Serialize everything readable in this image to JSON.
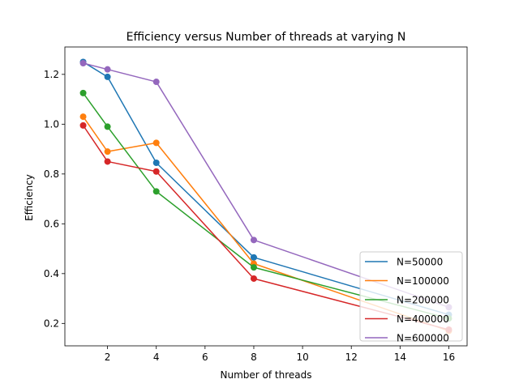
{
  "chart_data": {
    "type": "line",
    "title": "Efficiency versus Number of threads at varying N",
    "xlabel": "Number of threads",
    "ylabel": "Efficiency",
    "xlim": [
      0.25,
      16.75
    ],
    "ylim": [
      0.11,
      1.31
    ],
    "xticks": [
      2,
      4,
      6,
      8,
      10,
      12,
      14,
      16
    ],
    "yticks": [
      0.2,
      0.4,
      0.6,
      0.8,
      1.0,
      1.2
    ],
    "x": [
      1,
      2,
      4,
      8,
      16
    ],
    "series": [
      {
        "name": "N=50000",
        "color": "#1f77b4",
        "values": [
          1.25,
          1.19,
          0.845,
          0.465,
          0.235
        ]
      },
      {
        "name": "N=100000",
        "color": "#ff7f0e",
        "values": [
          1.03,
          0.89,
          0.925,
          0.44,
          0.17
        ]
      },
      {
        "name": "N=200000",
        "color": "#2ca02c",
        "values": [
          1.125,
          0.99,
          0.73,
          0.425,
          0.22
        ]
      },
      {
        "name": "N=400000",
        "color": "#d62728",
        "values": [
          0.995,
          0.85,
          0.81,
          0.38,
          0.175
        ]
      },
      {
        "name": "N=600000",
        "color": "#9467bd",
        "values": [
          1.245,
          1.22,
          1.17,
          0.535,
          0.265
        ]
      }
    ],
    "markers": "circle",
    "grid": false,
    "legend_position": "lower-right"
  }
}
